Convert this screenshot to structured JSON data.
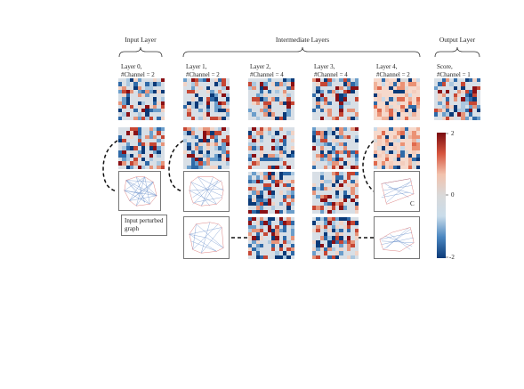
{
  "sections": {
    "input": "Input Layer",
    "intermediate": "Intermediate Layers",
    "output": "Output Layer"
  },
  "layers": [
    {
      "line1": "Layer 0,",
      "line2": "#Channel = 2"
    },
    {
      "line1": "Layer 1,",
      "line2": "#Channel = 2"
    },
    {
      "line1": "Layer 2,",
      "line2": "#Channel = 4"
    },
    {
      "line1": "Layer 3,",
      "line2": "#Channel = 4"
    },
    {
      "line1": "Layer 4,",
      "line2": "#Channel = 2"
    },
    {
      "line1": "Score,",
      "line2": "#Channel = 1"
    }
  ],
  "input_graph_label": "Input perturbed graph",
  "graph_marker": "C",
  "colorbar": {
    "max": "2",
    "mid": "0",
    "min": "-2",
    "colors": [
      "#0b3a78",
      "#4a86c0",
      "#c9dcea",
      "#d9d9d9",
      "#f2c2ad",
      "#d6553e",
      "#7a0c10"
    ]
  }
}
